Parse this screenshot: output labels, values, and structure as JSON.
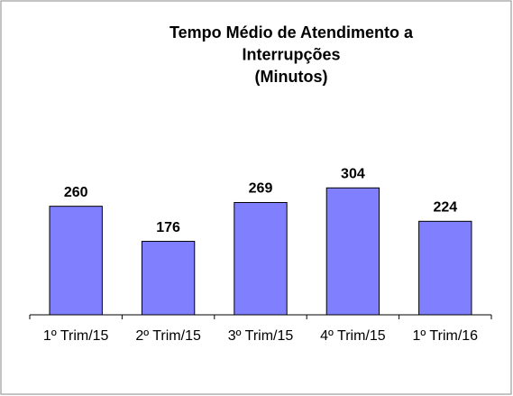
{
  "chart_data": {
    "type": "bar",
    "title": [
      "Tempo Médio de Atendimento a",
      "Interrupções",
      "(Minutos)"
    ],
    "categories": [
      "1º Trim/15",
      "2º Trim/15",
      "3º Trim/15",
      "4º Trim/15",
      "1º Trim/16"
    ],
    "values": [
      260,
      176,
      269,
      304,
      224
    ],
    "color": "#8080ff",
    "ylim": [
      0,
      350
    ]
  }
}
